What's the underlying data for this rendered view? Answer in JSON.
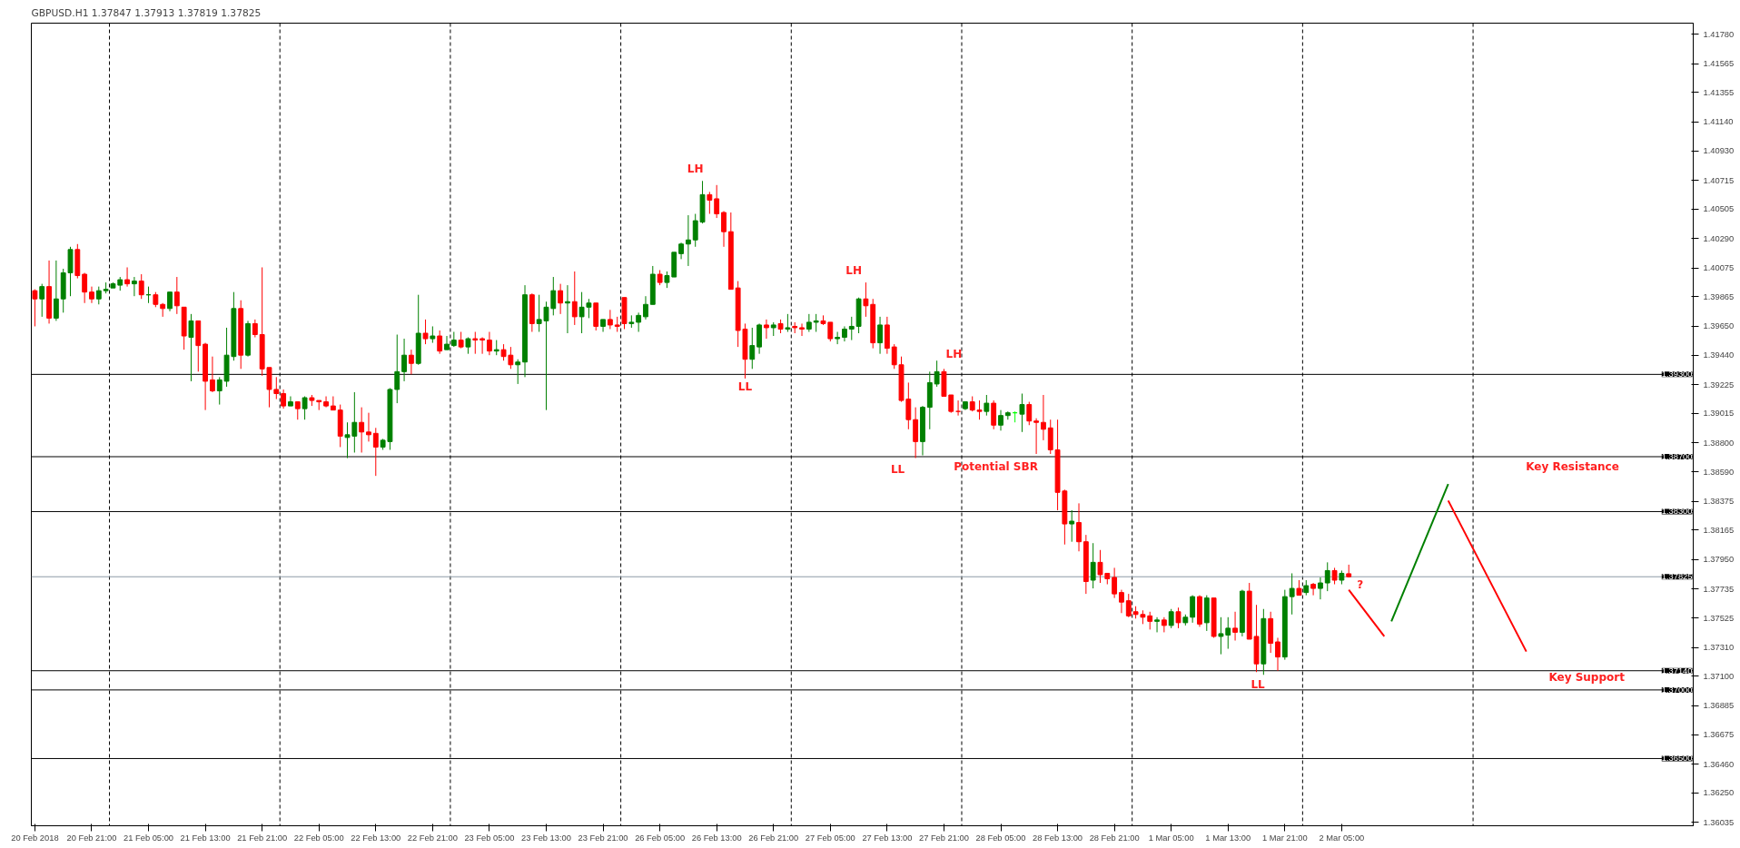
{
  "chart_data": {
    "type": "candlestick",
    "title": "GBPUSD.H1 1.37847 1.37913 1.37819 1.37825",
    "categories": [
      "20 Feb 2018",
      null,
      null,
      null,
      null,
      null,
      null,
      null,
      "20 Feb 21:00",
      null,
      null,
      null,
      null,
      null,
      null,
      null,
      "21 Feb 05:00",
      null,
      null,
      null,
      null,
      null,
      null,
      null,
      "21 Feb 13:00",
      null,
      null,
      null,
      null,
      null,
      null,
      null,
      "21 Feb 21:00",
      null,
      null,
      null,
      null,
      null,
      null,
      null,
      "22 Feb 05:00",
      null,
      null,
      null,
      null,
      null,
      null,
      null,
      "22 Feb 13:00",
      null,
      null,
      null,
      null,
      null,
      null,
      null,
      "22 Feb 21:00",
      null,
      null,
      null,
      null,
      null,
      null,
      null,
      "23 Feb 05:00",
      null,
      null,
      null,
      null,
      null,
      null,
      null,
      "23 Feb 13:00",
      null,
      null,
      null,
      null,
      null,
      null,
      null,
      "23 Feb 21:00",
      null,
      null,
      null,
      null,
      null,
      null,
      null,
      "26 Feb 05:00",
      null,
      null,
      null,
      null,
      null,
      null,
      null,
      "26 Feb 13:00",
      null,
      null,
      null,
      null,
      null,
      null,
      null,
      "26 Feb 21:00",
      null,
      null,
      null,
      null,
      null,
      null,
      null,
      "27 Feb 05:00",
      null,
      null,
      null,
      null,
      null,
      null,
      null,
      "27 Feb 13:00",
      null,
      null,
      null,
      null,
      null,
      null,
      null,
      "27 Feb 21:00",
      null,
      null,
      null,
      null,
      null,
      null,
      null,
      "28 Feb 05:00",
      null,
      null,
      null,
      null,
      null,
      null,
      null,
      "28 Feb 13:00",
      null,
      null,
      null,
      null,
      null,
      null,
      null,
      "28 Feb 21:00",
      null,
      null,
      null,
      null,
      null,
      null,
      null,
      "1 Mar 05:00",
      null,
      null,
      null,
      null,
      null,
      null,
      null,
      "1 Mar 13:00",
      null,
      null,
      null,
      null,
      null,
      null,
      null,
      "1 Mar 21:00",
      null,
      null,
      null,
      null,
      null,
      null,
      null,
      "2 Mar 05:00",
      null,
      null,
      null,
      null,
      null,
      null,
      null,
      null,
      null,
      null,
      null,
      null,
      null,
      null,
      null,
      null,
      null,
      null,
      null,
      null,
      null,
      null,
      null,
      null,
      null,
      null,
      null,
      null,
      null,
      null,
      null,
      null,
      null,
      null,
      null,
      null,
      null,
      null,
      null,
      null,
      null,
      null,
      null,
      null,
      null,
      null,
      null,
      null,
      null
    ],
    "ohlc": [
      [
        1.3991,
        1.3992,
        1.3965,
        1.3985
      ],
      [
        1.3985,
        1.3996,
        1.3972,
        1.3994
      ],
      [
        1.3994,
        1.4013,
        1.3967,
        1.3971
      ],
      [
        1.3971,
        1.4013,
        1.3969,
        1.3985
      ],
      [
        1.3985,
        1.4007,
        1.3975,
        1.4004
      ],
      [
        1.4004,
        1.4023,
        1.3987,
        1.4021
      ],
      [
        1.4021,
        1.4025,
        1.4,
        1.4002
      ],
      [
        1.4003,
        1.4004,
        1.3982,
        1.399
      ],
      [
        1.399,
        1.3994,
        1.3982,
        1.3985
      ],
      [
        1.3985,
        1.3994,
        1.3981,
        1.3991
      ],
      [
        1.3991,
        1.3997,
        1.3989,
        1.3992
      ],
      [
        1.3993,
        1.3997,
        1.3993,
        1.3996
      ],
      [
        1.3995,
        1.4001,
        1.3991,
        1.3999
      ],
      [
        1.3999,
        1.4008,
        1.3994,
        1.3996
      ],
      [
        1.3996,
        1.4001,
        1.3987,
        1.3998
      ],
      [
        1.3998,
        1.4003,
        1.3985,
        1.3988
      ],
      [
        1.3988,
        1.3994,
        1.3982,
        1.3988
      ],
      [
        1.3988,
        1.399,
        1.3979,
        1.3981
      ],
      [
        1.3981,
        1.3982,
        1.3972,
        1.3978
      ],
      [
        1.3978,
        1.399,
        1.3976,
        1.399
      ],
      [
        1.399,
        1.4001,
        1.3974,
        1.398
      ],
      [
        1.3979,
        1.3979,
        1.3948,
        1.3958
      ],
      [
        1.3957,
        1.3974,
        1.3925,
        1.3969
      ],
      [
        1.3969,
        1.3969,
        1.3932,
        1.3951
      ],
      [
        1.3952,
        1.3953,
        1.3904,
        1.3925
      ],
      [
        1.3926,
        1.3943,
        1.3917,
        1.3918
      ],
      [
        1.3918,
        1.3928,
        1.3908,
        1.3926
      ],
      [
        1.3925,
        1.3964,
        1.3921,
        1.3944
      ],
      [
        1.3943,
        1.399,
        1.394,
        1.3978
      ],
      [
        1.3978,
        1.3984,
        1.3934,
        1.3944
      ],
      [
        1.3944,
        1.3969,
        1.3943,
        1.3967
      ],
      [
        1.3967,
        1.397,
        1.3957,
        1.3959
      ],
      [
        1.3959,
        1.4008,
        1.3929,
        1.3934
      ],
      [
        1.3935,
        1.3935,
        1.3906,
        1.3919
      ],
      [
        1.3919,
        1.3928,
        1.3912,
        1.3916
      ],
      [
        1.3916,
        1.3919,
        1.3905,
        1.3907
      ],
      [
        1.3907,
        1.3914,
        1.3907,
        1.391
      ],
      [
        1.391,
        1.391,
        1.3897,
        1.3905
      ],
      [
        1.3905,
        1.3914,
        1.3897,
        1.3913
      ],
      [
        1.3913,
        1.3915,
        1.3907,
        1.3911
      ],
      [
        1.3911,
        1.3911,
        1.3904,
        1.391
      ],
      [
        1.391,
        1.3914,
        1.3906,
        1.3907
      ],
      [
        1.3907,
        1.3914,
        1.3904,
        1.3904
      ],
      [
        1.3904,
        1.3908,
        1.3877,
        1.3885
      ],
      [
        1.3884,
        1.3895,
        1.3869,
        1.3886
      ],
      [
        1.3885,
        1.3917,
        1.3873,
        1.3895
      ],
      [
        1.3895,
        1.3906,
        1.3873,
        1.3888
      ],
      [
        1.3888,
        1.3902,
        1.3881,
        1.3886
      ],
      [
        1.3887,
        1.3891,
        1.3856,
        1.3877
      ],
      [
        1.3877,
        1.3883,
        1.3875,
        1.3882
      ],
      [
        1.3881,
        1.392,
        1.3875,
        1.3919
      ],
      [
        1.3919,
        1.3959,
        1.3909,
        1.3932
      ],
      [
        1.3932,
        1.3956,
        1.3925,
        1.3944
      ],
      [
        1.3944,
        1.3948,
        1.393,
        1.3938
      ],
      [
        1.3938,
        1.3988,
        1.3937,
        1.396
      ],
      [
        1.396,
        1.397,
        1.3952,
        1.3956
      ],
      [
        1.3956,
        1.3965,
        1.3953,
        1.3958
      ],
      [
        1.3958,
        1.3962,
        1.3945,
        1.3947
      ],
      [
        1.3948,
        1.3958,
        1.3948,
        1.3952
      ],
      [
        1.3951,
        1.3961,
        1.395,
        1.3955
      ],
      [
        1.3955,
        1.3961,
        1.3949,
        1.395
      ],
      [
        1.395,
        1.3957,
        1.3945,
        1.3956
      ],
      [
        1.3956,
        1.3961,
        1.3945,
        1.3955
      ],
      [
        1.3956,
        1.3957,
        1.3945,
        1.3955
      ],
      [
        1.3955,
        1.3961,
        1.3944,
        1.3947
      ],
      [
        1.3947,
        1.3955,
        1.3944,
        1.3948
      ],
      [
        1.3948,
        1.3952,
        1.394,
        1.3943
      ],
      [
        1.3944,
        1.395,
        1.3934,
        1.3937
      ],
      [
        1.3937,
        1.3941,
        1.3923,
        1.3939
      ],
      [
        1.3939,
        1.3995,
        1.3928,
        1.3988
      ],
      [
        1.3988,
        1.3989,
        1.3961,
        1.3967
      ],
      [
        1.3967,
        1.3988,
        1.3961,
        1.397
      ],
      [
        1.3969,
        1.3983,
        1.3904,
        1.3979
      ],
      [
        1.3978,
        1.4001,
        1.3973,
        1.3991
      ],
      [
        1.3991,
        1.3996,
        1.3974,
        1.3982
      ],
      [
        1.3982,
        1.3995,
        1.396,
        1.3983
      ],
      [
        1.3983,
        1.4005,
        1.3966,
        1.3972
      ],
      [
        1.3972,
        1.399,
        1.396,
        1.3979
      ],
      [
        1.3979,
        1.3985,
        1.3971,
        1.3982
      ],
      [
        1.3982,
        1.3982,
        1.3962,
        1.3965
      ],
      [
        1.3965,
        1.397,
        1.3961,
        1.397
      ],
      [
        1.397,
        1.3977,
        1.3963,
        1.3966
      ],
      [
        1.3966,
        1.3972,
        1.3961,
        1.3965
      ],
      [
        1.3986,
        1.3986,
        1.3963,
        1.3967
      ],
      [
        1.3967,
        1.3973,
        1.3964,
        1.3968
      ],
      [
        1.3968,
        1.3975,
        1.3961,
        1.3973
      ],
      [
        1.3972,
        1.3987,
        1.397,
        1.3981
      ],
      [
        1.3981,
        1.4009,
        1.3981,
        1.4003
      ],
      [
        1.4003,
        1.4006,
        1.3995,
        1.3997
      ],
      [
        1.3997,
        1.4005,
        1.3993,
        1.4002
      ],
      [
        1.4001,
        1.4019,
        1.4001,
        1.4019
      ],
      [
        1.4018,
        1.4026,
        1.4014,
        1.4025
      ],
      [
        1.4025,
        1.4046,
        1.4009,
        1.4028
      ],
      [
        1.4028,
        1.4047,
        1.4023,
        1.4042
      ],
      [
        1.4041,
        1.4071,
        1.404,
        1.4061
      ],
      [
        1.4061,
        1.4063,
        1.4047,
        1.4057
      ],
      [
        1.4058,
        1.4068,
        1.4044,
        1.4047
      ],
      [
        1.4048,
        1.4049,
        1.4023,
        1.4034
      ],
      [
        1.4034,
        1.4048,
        1.3992,
        1.3992
      ],
      [
        1.3993,
        1.3998,
        1.395,
        1.3962
      ],
      [
        1.3963,
        1.3967,
        1.3927,
        1.3941
      ],
      [
        1.3941,
        1.3964,
        1.3934,
        1.3951
      ],
      [
        1.395,
        1.3967,
        1.3945,
        1.3966
      ],
      [
        1.3966,
        1.397,
        1.3956,
        1.3964
      ],
      [
        1.3964,
        1.3968,
        1.3958,
        1.3966
      ],
      [
        1.3967,
        1.397,
        1.396,
        1.3963
      ],
      [
        1.3963,
        1.3974,
        1.3961,
        1.3964
      ],
      [
        1.3965,
        1.3968,
        1.396,
        1.3964
      ],
      [
        1.3964,
        1.3967,
        1.3958,
        1.3963
      ],
      [
        1.3963,
        1.3974,
        1.3961,
        1.3968
      ],
      [
        1.3968,
        1.3974,
        1.3961,
        1.3969
      ],
      [
        1.3969,
        1.3973,
        1.3966,
        1.3967
      ],
      [
        1.3968,
        1.3968,
        1.3954,
        1.3956
      ],
      [
        1.3956,
        1.3961,
        1.3952,
        1.3957
      ],
      [
        1.3957,
        1.3965,
        1.3954,
        1.3963
      ],
      [
        1.3963,
        1.3972,
        1.3955,
        1.3965
      ],
      [
        1.3965,
        1.3986,
        1.396,
        1.3985
      ],
      [
        1.3985,
        1.3997,
        1.3972,
        1.398
      ],
      [
        1.3981,
        1.3985,
        1.3949,
        1.3953
      ],
      [
        1.3953,
        1.3972,
        1.3945,
        1.3966
      ],
      [
        1.3966,
        1.3972,
        1.3945,
        1.3949
      ],
      [
        1.395,
        1.3952,
        1.3934,
        1.3937
      ],
      [
        1.3937,
        1.3943,
        1.391,
        1.3911
      ],
      [
        1.3912,
        1.3924,
        1.389,
        1.3897
      ],
      [
        1.3897,
        1.3906,
        1.3869,
        1.3881
      ],
      [
        1.3881,
        1.3907,
        1.3871,
        1.3906
      ],
      [
        1.3906,
        1.3932,
        1.389,
        1.3924
      ],
      [
        1.3923,
        1.394,
        1.3921,
        1.3932
      ],
      [
        1.3932,
        1.3934,
        1.3914,
        1.3914
      ],
      [
        1.3915,
        1.3915,
        1.3902,
        1.3903
      ],
      [
        1.3903,
        1.3911,
        1.39,
        1.3903
      ],
      [
        1.3905,
        1.391,
        1.3904,
        1.391
      ],
      [
        1.391,
        1.3914,
        1.3903,
        1.3904
      ],
      [
        1.3904,
        1.3911,
        1.3897,
        1.3903
      ],
      [
        1.3903,
        1.3915,
        1.39,
        1.3909
      ],
      [
        1.3909,
        1.3911,
        1.389,
        1.3893
      ],
      [
        1.3893,
        1.3904,
        1.3889,
        1.39
      ],
      [
        1.39,
        1.3903,
        1.3897,
        1.3902
      ],
      [
        1.3902,
        1.3903,
        1.3895,
        1.3902
      ],
      [
        1.3901,
        1.3916,
        1.3888,
        1.3908
      ],
      [
        1.3908,
        1.391,
        1.3893,
        1.3896
      ],
      [
        1.3896,
        1.3898,
        1.3872,
        1.3895
      ],
      [
        1.3895,
        1.3915,
        1.3882,
        1.389
      ],
      [
        1.3891,
        1.3897,
        1.3872,
        1.3875
      ],
      [
        1.3875,
        1.3897,
        1.3831,
        1.3844
      ],
      [
        1.3845,
        1.3846,
        1.3806,
        1.3821
      ],
      [
        1.3821,
        1.3831,
        1.3808,
        1.3823
      ],
      [
        1.3822,
        1.3836,
        1.3801,
        1.3808
      ],
      [
        1.3808,
        1.3813,
        1.377,
        1.3779
      ],
      [
        1.378,
        1.3807,
        1.3774,
        1.3793
      ],
      [
        1.3793,
        1.3802,
        1.3778,
        1.3784
      ],
      [
        1.3785,
        1.3785,
        1.3777,
        1.3781
      ],
      [
        1.3782,
        1.3789,
        1.3767,
        1.377
      ],
      [
        1.3771,
        1.3773,
        1.3756,
        1.3764
      ],
      [
        1.3765,
        1.377,
        1.3753,
        1.3754
      ],
      [
        1.3757,
        1.3761,
        1.3752,
        1.3755
      ],
      [
        1.3755,
        1.3758,
        1.3748,
        1.3753
      ],
      [
        1.3754,
        1.3757,
        1.3744,
        1.375
      ],
      [
        1.375,
        1.3753,
        1.3742,
        1.3751
      ],
      [
        1.3751,
        1.3753,
        1.3742,
        1.3747
      ],
      [
        1.3747,
        1.3759,
        1.3745,
        1.3757
      ],
      [
        1.3757,
        1.376,
        1.3745,
        1.3749
      ],
      [
        1.3749,
        1.3755,
        1.3747,
        1.3753
      ],
      [
        1.3753,
        1.3769,
        1.3749,
        1.3768
      ],
      [
        1.3768,
        1.3769,
        1.3746,
        1.3748
      ],
      [
        1.3749,
        1.3769,
        1.3743,
        1.3767
      ],
      [
        1.3767,
        1.3767,
        1.3738,
        1.3739
      ],
      [
        1.3739,
        1.3753,
        1.3726,
        1.3741
      ],
      [
        1.374,
        1.3753,
        1.373,
        1.3745
      ],
      [
        1.3745,
        1.3757,
        1.3736,
        1.3742
      ],
      [
        1.3742,
        1.3773,
        1.3739,
        1.3772
      ],
      [
        1.3772,
        1.3778,
        1.3737,
        1.3737
      ],
      [
        1.3739,
        1.3762,
        1.3713,
        1.3719
      ],
      [
        1.3719,
        1.3759,
        1.3711,
        1.3752
      ],
      [
        1.3752,
        1.3757,
        1.3727,
        1.3734
      ],
      [
        1.3735,
        1.3738,
        1.3714,
        1.3724
      ],
      [
        1.3724,
        1.3773,
        1.3722,
        1.3768
      ],
      [
        1.3768,
        1.3785,
        1.3755,
        1.3774
      ],
      [
        1.3774,
        1.378,
        1.3769,
        1.3769
      ],
      [
        1.3771,
        1.378,
        1.3769,
        1.3776
      ],
      [
        1.3777,
        1.3778,
        1.3769,
        1.3774
      ],
      [
        1.3774,
        1.3782,
        1.3766,
        1.3778
      ],
      [
        1.3778,
        1.3793,
        1.3772,
        1.3787
      ],
      [
        1.3787,
        1.3789,
        1.3777,
        1.378
      ],
      [
        1.378,
        1.3787,
        1.3777,
        1.3785
      ],
      [
        1.37847,
        1.37913,
        1.37819,
        1.37825
      ],
      null,
      null,
      null,
      null,
      null,
      null,
      null,
      null,
      null,
      null,
      null,
      null,
      null,
      null,
      null,
      null,
      null,
      null,
      null,
      null,
      null,
      null,
      null,
      null,
      null,
      null,
      null,
      null,
      null,
      null,
      null,
      null,
      null,
      null,
      null,
      null,
      null,
      null,
      null,
      null,
      null,
      null,
      null,
      null,
      null,
      null,
      null,
      null
    ],
    "colors": [
      "#ff0000",
      "#008000",
      "#ff0000",
      "#008000",
      "#008000",
      "#008000",
      "#ff0000",
      "#ff0000",
      "#ff0000",
      "#008000",
      "#008000",
      "#008000",
      "#008000",
      "#ff0000",
      "#008000",
      "#ff0000",
      "#008000",
      "#ff0000",
      "#ff0000",
      "#008000",
      "#ff0000",
      "#ff0000",
      "#008000",
      "#ff0000",
      "#ff0000",
      "#ff0000",
      "#008000",
      "#008000",
      "#008000",
      "#ff0000",
      "#008000",
      "#ff0000",
      "#ff0000",
      "#ff0000",
      "#ff0000",
      "#ff0000",
      "#008000",
      "#ff0000",
      "#008000",
      "#ff0000",
      "#ff0000",
      "#ff0000",
      "#ff0000",
      "#ff0000",
      "#008000",
      "#008000",
      "#ff0000",
      "#ff0000",
      "#ff0000",
      "#008000",
      "#008000",
      "#008000",
      "#008000",
      "#ff0000",
      "#008000",
      "#ff0000",
      "#008000",
      "#ff0000",
      "#008000",
      "#008000",
      "#ff0000",
      "#008000",
      "#ff0000",
      "#ff0000",
      "#ff0000",
      "#008000",
      "#ff0000",
      "#ff0000",
      "#008000",
      "#008000",
      "#ff0000",
      "#008000",
      "#008000",
      "#008000",
      "#ff0000",
      "#008000",
      "#ff0000",
      "#008000",
      "#008000",
      "#ff0000",
      "#008000",
      "#ff0000",
      "#ff0000",
      "#ff0000",
      "#008000",
      "#008000",
      "#008000",
      "#008000",
      "#ff0000",
      "#008000",
      "#008000",
      "#008000",
      "#008000",
      "#008000",
      "#008000",
      "#ff0000",
      "#ff0000",
      "#ff0000",
      "#ff0000",
      "#ff0000",
      "#ff0000",
      "#008000",
      "#008000",
      "#ff0000",
      "#008000",
      "#ff0000",
      "#008000",
      "#ff0000",
      "#ff0000",
      "#008000",
      "#008000",
      "#ff0000",
      "#ff0000",
      "#008000",
      "#008000",
      "#008000",
      "#008000",
      "#ff0000",
      "#ff0000",
      "#008000",
      "#ff0000",
      "#ff0000",
      "#ff0000",
      "#ff0000",
      "#ff0000",
      "#008000",
      "#008000",
      "#008000",
      "#ff0000",
      "#ff0000",
      "#ff0000",
      "#008000",
      "#ff0000",
      "#ff0000",
      "#008000",
      "#ff0000",
      "#008000",
      "#008000",
      "#00ff00",
      "#008000",
      "#ff0000",
      "#ff0000",
      "#ff0000",
      "#ff0000",
      "#ff0000",
      "#ff0000",
      "#008000",
      "#ff0000",
      "#ff0000",
      "#008000",
      "#ff0000",
      "#ff0000",
      "#ff0000",
      "#ff0000",
      "#ff0000",
      "#ff0000",
      "#ff0000",
      "#ff0000",
      "#008000",
      "#ff0000",
      "#008000",
      "#ff0000",
      "#008000",
      "#008000",
      "#ff0000",
      "#008000",
      "#ff0000",
      "#008000",
      "#008000",
      "#ff0000",
      "#008000",
      "#ff0000",
      "#ff0000",
      "#008000",
      "#ff0000",
      "#ff0000",
      "#008000",
      "#008000",
      "#ff0000",
      "#008000",
      "#ff0000",
      "#008000",
      "#008000",
      "#ff0000",
      "#008000",
      "#ff0000",
      null,
      null,
      null,
      null,
      null,
      null,
      null,
      null,
      null,
      null,
      null,
      null,
      null,
      null,
      null,
      null,
      null,
      null,
      null,
      null,
      null,
      null,
      null,
      null,
      null,
      null,
      null,
      null,
      null,
      null,
      null,
      null,
      null,
      null,
      null,
      null,
      null,
      null,
      null,
      null,
      null,
      null,
      null,
      null,
      null,
      null,
      null,
      null
    ],
    "series": [
      {
        "type": "line",
        "color": "#ff0000",
        "values": [
          null,
          null,
          null,
          null,
          null,
          null,
          null,
          null,
          null,
          null,
          null,
          null,
          null,
          null,
          null,
          null,
          null,
          null,
          null,
          null,
          null,
          null,
          null,
          null,
          null,
          null,
          null,
          null,
          null,
          null,
          null,
          null,
          null,
          null,
          null,
          null,
          null,
          null,
          null,
          null,
          null,
          null,
          null,
          null,
          null,
          null,
          null,
          null,
          null,
          null,
          null,
          null,
          null,
          null,
          null,
          null,
          null,
          null,
          null,
          null,
          null,
          null,
          null,
          null,
          null,
          null,
          null,
          null,
          null,
          null,
          null,
          null,
          null,
          null,
          null,
          null,
          null,
          null,
          null,
          null,
          null,
          null,
          null,
          null,
          null,
          null,
          null,
          null,
          null,
          null,
          null,
          null,
          null,
          null,
          null,
          null,
          null,
          null,
          null,
          null,
          null,
          null,
          null,
          null,
          null,
          null,
          null,
          null,
          null,
          null,
          null,
          null,
          null,
          null,
          null,
          null,
          null,
          null,
          null,
          null,
          null,
          null,
          null,
          null,
          null,
          null,
          null,
          null,
          null,
          null,
          null,
          null,
          null,
          null,
          null,
          null,
          null,
          null,
          null,
          null,
          null,
          null,
          null,
          null,
          null,
          null,
          null,
          null,
          null,
          null,
          null,
          null,
          null,
          null,
          null,
          null,
          null,
          null,
          null,
          null,
          null,
          null,
          null,
          null,
          null,
          null,
          null,
          null,
          null,
          null,
          null,
          null,
          null,
          null,
          null,
          null,
          null,
          null,
          null,
          null,
          null,
          null,
          null,
          null,
          null,
          1.3773,
          null,
          null,
          null,
          null,
          1.3739,
          null,
          null,
          null,
          null,
          null,
          null,
          null,
          null,
          null,
          null,
          null,
          null,
          null,
          null,
          null,
          null,
          null,
          null,
          null,
          null,
          null,
          null,
          null,
          null,
          null,
          null,
          null,
          null,
          null,
          null,
          null,
          null,
          null,
          null,
          null,
          null,
          null,
          null,
          null,
          null,
          null,
          null,
          null
        ]
      },
      {
        "type": "line",
        "color": "#008000",
        "values": [
          null,
          null,
          null,
          null,
          null,
          null,
          null,
          null,
          null,
          null,
          null,
          null,
          null,
          null,
          null,
          null,
          null,
          null,
          null,
          null,
          null,
          null,
          null,
          null,
          null,
          null,
          null,
          null,
          null,
          null,
          null,
          null,
          null,
          null,
          null,
          null,
          null,
          null,
          null,
          null,
          null,
          null,
          null,
          null,
          null,
          null,
          null,
          null,
          null,
          null,
          null,
          null,
          null,
          null,
          null,
          null,
          null,
          null,
          null,
          null,
          null,
          null,
          null,
          null,
          null,
          null,
          null,
          null,
          null,
          null,
          null,
          null,
          null,
          null,
          null,
          null,
          null,
          null,
          null,
          null,
          null,
          null,
          null,
          null,
          null,
          null,
          null,
          null,
          null,
          null,
          null,
          null,
          null,
          null,
          null,
          null,
          null,
          null,
          null,
          null,
          null,
          null,
          null,
          null,
          null,
          null,
          null,
          null,
          null,
          null,
          null,
          null,
          null,
          null,
          null,
          null,
          null,
          null,
          null,
          null,
          null,
          null,
          null,
          null,
          null,
          null,
          null,
          null,
          null,
          null,
          null,
          null,
          null,
          null,
          null,
          null,
          null,
          null,
          null,
          null,
          null,
          null,
          null,
          null,
          null,
          null,
          null,
          null,
          null,
          null,
          null,
          null,
          null,
          null,
          null,
          null,
          null,
          null,
          null,
          null,
          null,
          null,
          null,
          null,
          null,
          null,
          null,
          null,
          null,
          null,
          null,
          null,
          null,
          null,
          null,
          null,
          null,
          null,
          null,
          null,
          null,
          null,
          null,
          null,
          null,
          null,
          null,
          null,
          null,
          null,
          null,
          1.375,
          null,
          null,
          null,
          null,
          null,
          null,
          null,
          1.385,
          null,
          null,
          null,
          null,
          null,
          null,
          null,
          null,
          null,
          null,
          null,
          null,
          null,
          null,
          null,
          null,
          null,
          null,
          null,
          null,
          null,
          null,
          null,
          null,
          null,
          null,
          null,
          null,
          null,
          null,
          null,
          null,
          null,
          null
        ]
      },
      {
        "type": "line",
        "color": "#ff0000",
        "values": [
          null,
          null,
          null,
          null,
          null,
          null,
          null,
          null,
          null,
          null,
          null,
          null,
          null,
          null,
          null,
          null,
          null,
          null,
          null,
          null,
          null,
          null,
          null,
          null,
          null,
          null,
          null,
          null,
          null,
          null,
          null,
          null,
          null,
          null,
          null,
          null,
          null,
          null,
          null,
          null,
          null,
          null,
          null,
          null,
          null,
          null,
          null,
          null,
          null,
          null,
          null,
          null,
          null,
          null,
          null,
          null,
          null,
          null,
          null,
          null,
          null,
          null,
          null,
          null,
          null,
          null,
          null,
          null,
          null,
          null,
          null,
          null,
          null,
          null,
          null,
          null,
          null,
          null,
          null,
          null,
          null,
          null,
          null,
          null,
          null,
          null,
          null,
          null,
          null,
          null,
          null,
          null,
          null,
          null,
          null,
          null,
          null,
          null,
          null,
          null,
          null,
          null,
          null,
          null,
          null,
          null,
          null,
          null,
          null,
          null,
          null,
          null,
          null,
          null,
          null,
          null,
          null,
          null,
          null,
          null,
          null,
          null,
          null,
          null,
          null,
          null,
          null,
          null,
          null,
          null,
          null,
          null,
          null,
          null,
          null,
          null,
          null,
          null,
          null,
          null,
          null,
          null,
          null,
          null,
          null,
          null,
          null,
          null,
          null,
          null,
          null,
          null,
          null,
          null,
          null,
          null,
          null,
          null,
          null,
          null,
          null,
          null,
          null,
          null,
          null,
          null,
          null,
          null,
          null,
          null,
          null,
          null,
          null,
          null,
          null,
          null,
          null,
          null,
          null,
          null,
          null,
          null,
          null,
          null,
          null,
          null,
          null,
          null,
          null,
          null,
          null,
          null,
          null,
          null,
          null,
          null,
          null,
          null,
          null,
          1.3838,
          null,
          null,
          null,
          null,
          null,
          null,
          null,
          null,
          null,
          null,
          1.3728,
          null,
          null,
          null,
          null,
          null,
          null,
          null,
          null,
          null,
          null,
          null,
          null,
          null,
          null,
          null,
          null,
          null,
          null,
          null,
          null,
          null,
          null,
          null
        ]
      }
    ],
    "ylim": [
      1.3601,
      1.4186
    ],
    "yticks": [
      {
        "value": 1.4178,
        "label": "1.41780"
      },
      {
        "value": 1.41565,
        "label": "1.41565"
      },
      {
        "value": 1.41355,
        "label": "1.41355"
      },
      {
        "value": 1.4114,
        "label": "1.41140"
      },
      {
        "value": 1.4093,
        "label": "1.40930"
      },
      {
        "value": 1.40715,
        "label": "1.40715"
      },
      {
        "value": 1.40505,
        "label": "1.40505"
      },
      {
        "value": 1.4029,
        "label": "1.40290"
      },
      {
        "value": 1.40075,
        "label": "1.40075"
      },
      {
        "value": 1.39865,
        "label": "1.39865"
      },
      {
        "value": 1.3965,
        "label": "1.39650"
      },
      {
        "value": 1.3944,
        "label": "1.39440"
      },
      {
        "value": 1.39225,
        "label": "1.39225"
      },
      {
        "value": 1.39015,
        "label": "1.39015"
      },
      {
        "value": 1.388,
        "label": "1.38800"
      },
      {
        "value": 1.3859,
        "label": "1.38590"
      },
      {
        "value": 1.38375,
        "label": "1.38375"
      },
      {
        "value": 1.38165,
        "label": "1.38165"
      },
      {
        "value": 1.3795,
        "label": "1.37950"
      },
      {
        "value": 1.37735,
        "label": "1.37735"
      },
      {
        "value": 1.37525,
        "label": "1.37525"
      },
      {
        "value": 1.3731,
        "label": "1.37310"
      },
      {
        "value": 1.371,
        "label": "1.37100"
      },
      {
        "value": 1.36885,
        "label": "1.36885"
      },
      {
        "value": 1.36675,
        "label": "1.36675"
      },
      {
        "value": 1.3646,
        "label": "1.36460"
      },
      {
        "value": 1.3625,
        "label": "1.36250"
      },
      {
        "value": 1.36035,
        "label": "1.36035"
      }
    ],
    "ref_lines": [
      {
        "axis": "y",
        "value": 1.393,
        "label": "1.39300",
        "color": "#000000"
      },
      {
        "axis": "y",
        "value": 1.387,
        "label": "1.38700",
        "color": "#000000"
      },
      {
        "axis": "y",
        "value": 1.383,
        "label": "1.38300",
        "color": "#000000"
      },
      {
        "axis": "y",
        "value": 1.37825,
        "label": "1.37825",
        "color": "#8c9aa5"
      },
      {
        "axis": "y",
        "value": 1.3714,
        "label": "1.37140",
        "color": "#000000"
      },
      {
        "axis": "y",
        "value": 1.37,
        "label": "1.37000",
        "color": "#000000"
      },
      {
        "axis": "y",
        "value": 1.365,
        "label": "1.36500",
        "color": "#000000"
      }
    ],
    "annotations": [
      "LH",
      "LL",
      "LH",
      "LH",
      "LL",
      "Potential SBR",
      "LL",
      "?",
      "Key Resistance",
      "Key Support"
    ],
    "grid": false
  }
}
